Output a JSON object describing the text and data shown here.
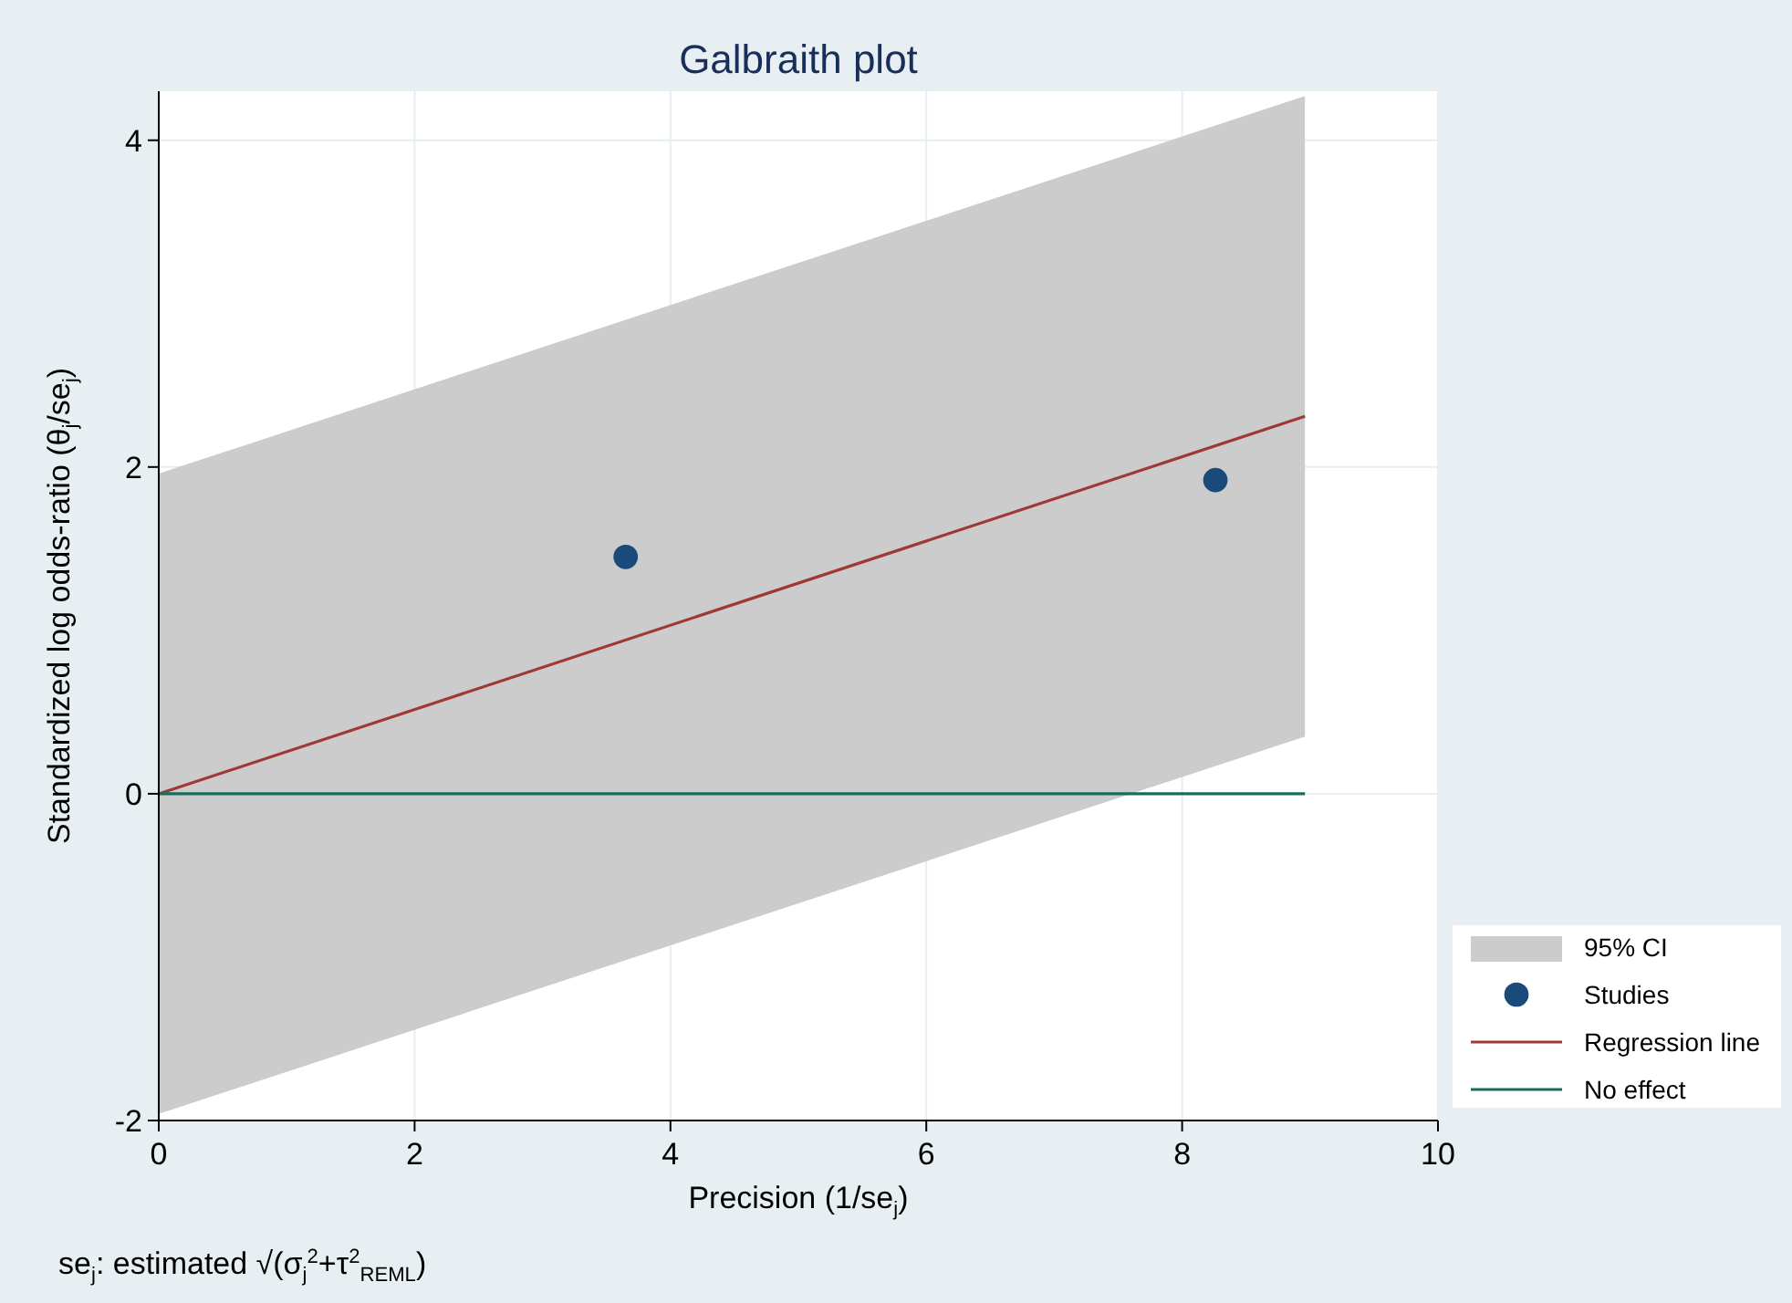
{
  "chart_data": {
    "type": "line",
    "title": "Galbraith plot",
    "xlabel": "Precision (1/se$_{j}$)",
    "ylabel": "Standardized log odds-ratio (θ$_{j}$/se$_{j}$)",
    "annotations": [
      "se$_{j}$: estimated √(σ$_{j}$$^{2}$+τ$^{2}$$_{REML}$)"
    ],
    "xlim": [
      0,
      10
    ],
    "xticks": [
      0,
      2,
      4,
      6,
      8,
      10
    ],
    "ylim": [
      -2,
      4.3
    ],
    "yticks": [
      -2,
      0,
      2,
      4
    ],
    "grid": true,
    "legend": "bottom right",
    "series": [
      {
        "name": "95% CI",
        "type": "area",
        "color": "#cccccc",
        "x": [
          0,
          8.96,
          8.96,
          0
        ],
        "values": [
          1.96,
          4.27,
          0.35,
          -1.96
        ]
      },
      {
        "name": "Studies",
        "type": "scatter",
        "color": "#1a4a7a",
        "marker": "circle",
        "x": [
          3.65,
          8.26
        ],
        "values": [
          1.45,
          1.92
        ]
      },
      {
        "name": "Regression line",
        "type": "line",
        "color": "#a03838",
        "x": [
          0,
          8.96
        ],
        "values": [
          0,
          2.31
        ]
      },
      {
        "name": "No effect",
        "type": "line",
        "color": "#1a6b5a",
        "x": [
          0,
          8.96
        ],
        "values": [
          0,
          0
        ]
      }
    ]
  }
}
